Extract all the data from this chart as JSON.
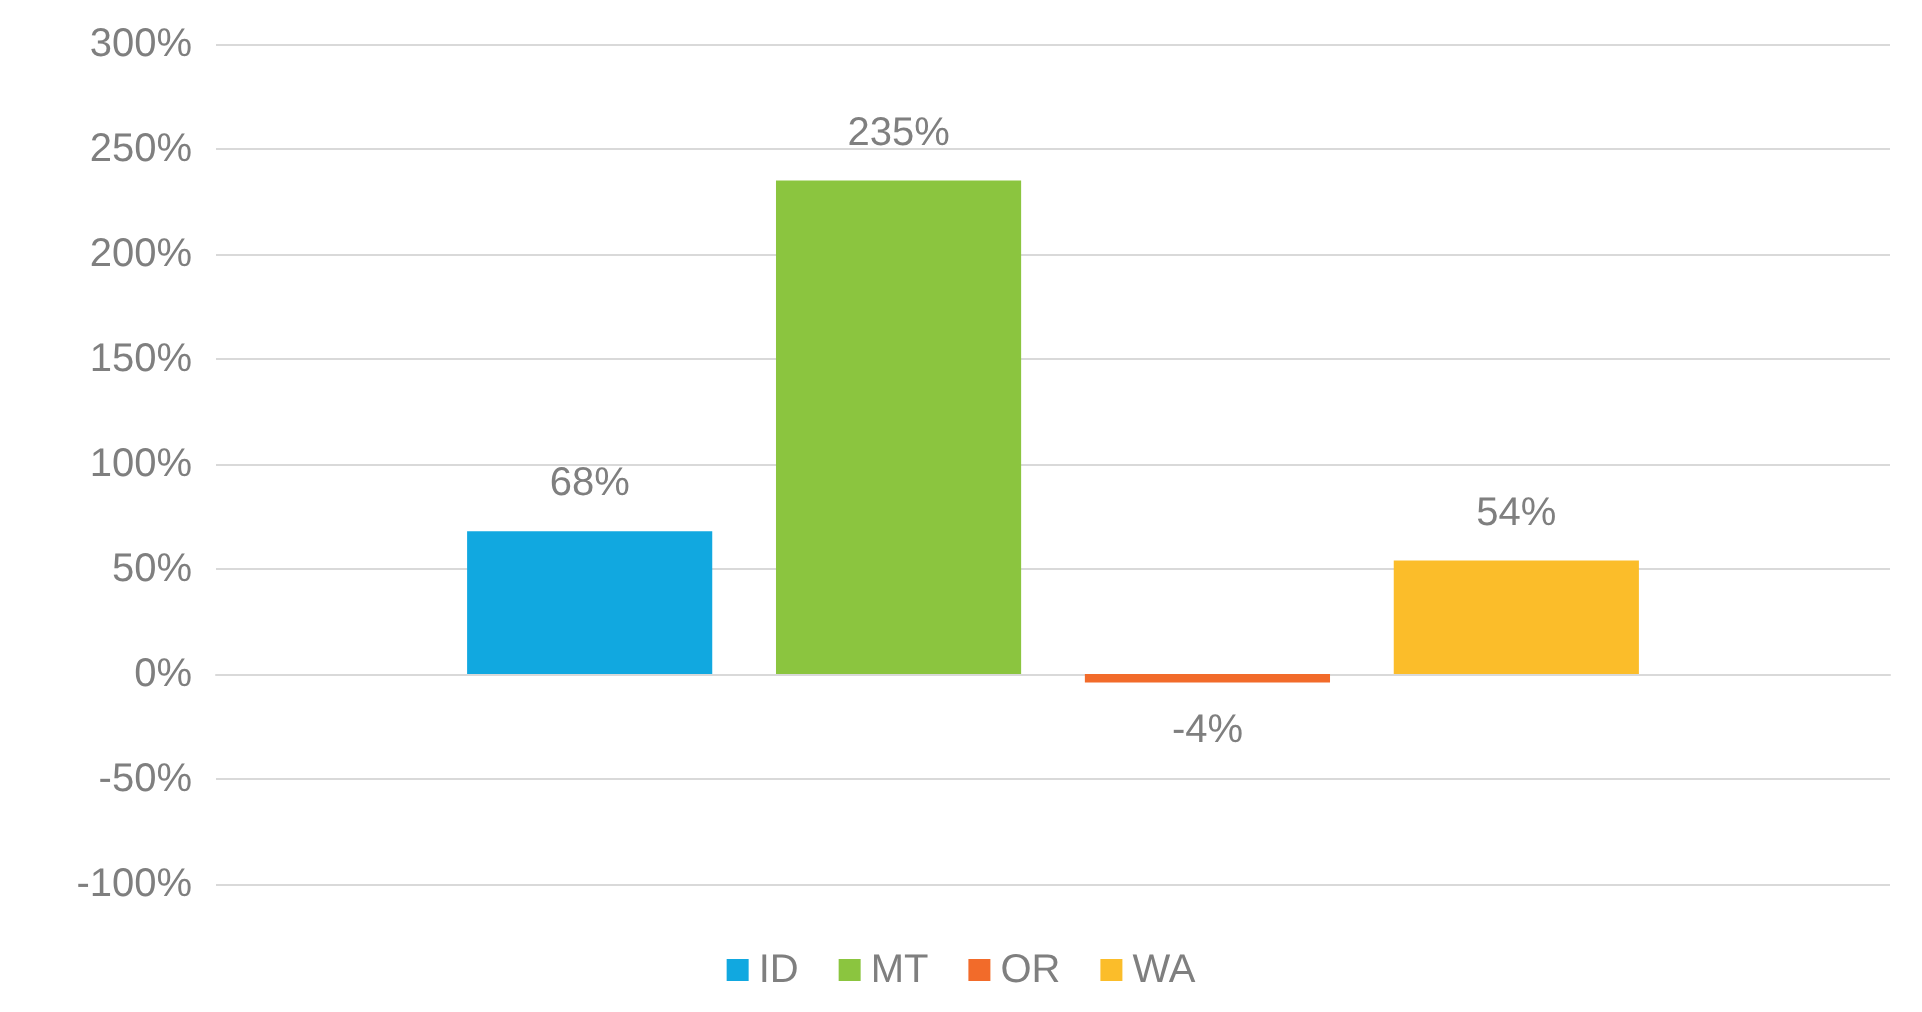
{
  "chart_data": {
    "type": "bar",
    "categories": [
      null
    ],
    "series": [
      {
        "name": "ID",
        "color": "#11a8e0",
        "values": [
          68
        ],
        "value_labels": [
          "68%"
        ]
      },
      {
        "name": "MT",
        "color": "#8bc53f",
        "values": [
          235
        ],
        "value_labels": [
          "235%"
        ]
      },
      {
        "name": "OR",
        "color": "#f26b2a",
        "values": [
          -4
        ],
        "value_labels": [
          "-4%"
        ]
      },
      {
        "name": "WA",
        "color": "#fbbd2a",
        "values": [
          54
        ],
        "value_labels": [
          "54%"
        ]
      }
    ],
    "ylim": [
      -100,
      300
    ],
    "yticks": [
      {
        "value": -100,
        "label": "-100%"
      },
      {
        "value": -50,
        "label": "-50%"
      },
      {
        "value": 0,
        "label": "0%"
      },
      {
        "value": 50,
        "label": "50%"
      },
      {
        "value": 100,
        "label": "100%"
      },
      {
        "value": 150,
        "label": "150%"
      },
      {
        "value": 200,
        "label": "200%"
      },
      {
        "value": 250,
        "label": "250%"
      },
      {
        "value": 300,
        "label": "300%"
      }
    ],
    "grid": "y",
    "legend": "bottom"
  }
}
